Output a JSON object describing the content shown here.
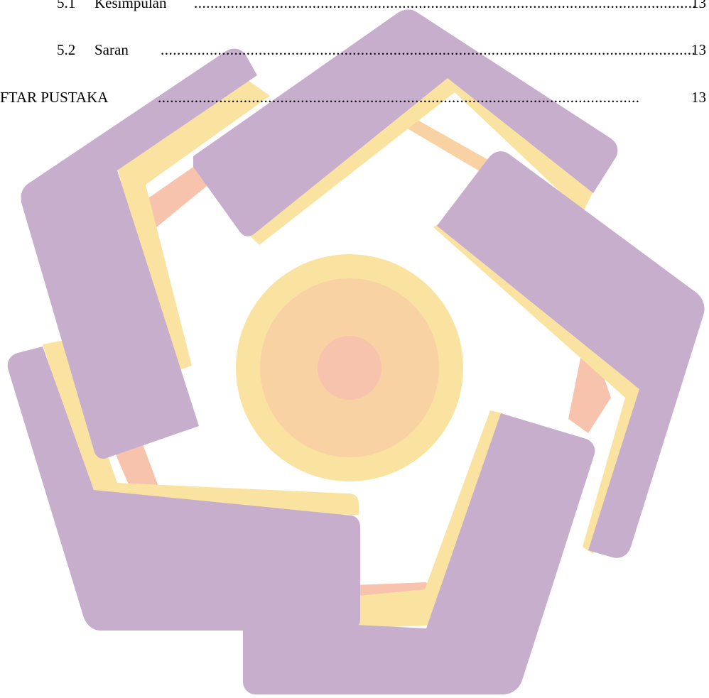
{
  "document": {
    "toc_rows": [
      {
        "number": "5.1",
        "title": "Kesimpulan",
        "page": "13"
      },
      {
        "number": "5.2",
        "title": "Saran",
        "page": "13"
      },
      {
        "number": "",
        "title": "FTAR PUSTAKA",
        "page": "13"
      }
    ]
  },
  "watermark": {
    "type": "logo",
    "colors": {
      "purple": "#c8aecd",
      "yellow": "#fae3a1",
      "peach": "#f9d2a4",
      "coral": "#f7c3ad"
    }
  }
}
